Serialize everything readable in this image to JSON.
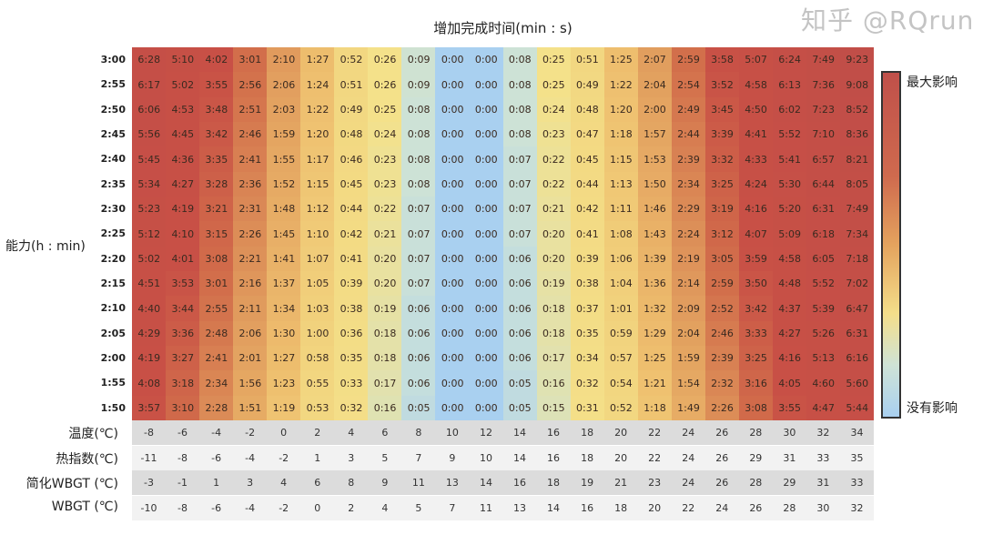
{
  "chart_data": {
    "type": "heatmap",
    "title": "增加完成时间(min : s)",
    "ylabel": "能力(h : min)",
    "rows": [
      "3:00",
      "2:55",
      "2:50",
      "2:45",
      "2:40",
      "2:35",
      "2:30",
      "2:25",
      "2:20",
      "2:15",
      "2:10",
      "2:05",
      "2:00",
      "1:55",
      "1:50"
    ],
    "values": [
      [
        "6:28",
        "5:10",
        "4:02",
        "3:01",
        "2:10",
        "1:27",
        "0:52",
        "0:26",
        "0:09",
        "0:00",
        "0:00",
        "0:08",
        "0:25",
        "0:51",
        "1:25",
        "2:07",
        "2:59",
        "3:58",
        "5:07",
        "6:24",
        "7:49",
        "9:23"
      ],
      [
        "6:17",
        "5:02",
        "3:55",
        "2:56",
        "2:06",
        "1:24",
        "0:51",
        "0:26",
        "0:09",
        "0:00",
        "0:00",
        "0:08",
        "0:25",
        "0:49",
        "1:22",
        "2:04",
        "2:54",
        "3:52",
        "4:58",
        "6:13",
        "7:36",
        "9:08"
      ],
      [
        "6:06",
        "4:53",
        "3:48",
        "2:51",
        "2:03",
        "1:22",
        "0:49",
        "0:25",
        "0:08",
        "0:00",
        "0:00",
        "0:08",
        "0:24",
        "0:48",
        "1:20",
        "2:00",
        "2:49",
        "3:45",
        "4:50",
        "6:02",
        "7:23",
        "8:52"
      ],
      [
        "5:56",
        "4:45",
        "3:42",
        "2:46",
        "1:59",
        "1:20",
        "0:48",
        "0:24",
        "0:08",
        "0:00",
        "0:00",
        "0:08",
        "0:23",
        "0:47",
        "1:18",
        "1:57",
        "2:44",
        "3:39",
        "4:41",
        "5:52",
        "7:10",
        "8:36"
      ],
      [
        "5:45",
        "4:36",
        "3:35",
        "2:41",
        "1:55",
        "1:17",
        "0:46",
        "0:23",
        "0:08",
        "0:00",
        "0:00",
        "0:07",
        "0:22",
        "0:45",
        "1:15",
        "1:53",
        "2:39",
        "3:32",
        "4:33",
        "5:41",
        "6:57",
        "8:21"
      ],
      [
        "5:34",
        "4:27",
        "3:28",
        "2:36",
        "1:52",
        "1:15",
        "0:45",
        "0:23",
        "0:08",
        "0:00",
        "0:00",
        "0:07",
        "0:22",
        "0:44",
        "1:13",
        "1:50",
        "2:34",
        "3:25",
        "4:24",
        "5:30",
        "6:44",
        "8:05"
      ],
      [
        "5:23",
        "4:19",
        "3:21",
        "2:31",
        "1:48",
        "1:12",
        "0:44",
        "0:22",
        "0:07",
        "0:00",
        "0:00",
        "0:07",
        "0:21",
        "0:42",
        "1:11",
        "1:46",
        "2:29",
        "3:19",
        "4:16",
        "5:20",
        "6:31",
        "7:49"
      ],
      [
        "5:12",
        "4:10",
        "3:15",
        "2:26",
        "1:45",
        "1:10",
        "0:42",
        "0:21",
        "0:07",
        "0:00",
        "0:00",
        "0:07",
        "0:20",
        "0:41",
        "1:08",
        "1:43",
        "2:24",
        "3:12",
        "4:07",
        "5:09",
        "6:18",
        "7:34"
      ],
      [
        "5:02",
        "4:01",
        "3:08",
        "2:21",
        "1:41",
        "1:07",
        "0:41",
        "0:20",
        "0:07",
        "0:00",
        "0:00",
        "0:06",
        "0:20",
        "0:39",
        "1:06",
        "1:39",
        "2:19",
        "3:05",
        "3:59",
        "4:58",
        "6:05",
        "7:18"
      ],
      [
        "4:51",
        "3:53",
        "3:01",
        "2:16",
        "1:37",
        "1:05",
        "0:39",
        "0:20",
        "0:07",
        "0:00",
        "0:00",
        "0:06",
        "0:19",
        "0:38",
        "1:04",
        "1:36",
        "2:14",
        "2:59",
        "3:50",
        "4:48",
        "5:52",
        "7:02"
      ],
      [
        "4:40",
        "3:44",
        "2:55",
        "2:11",
        "1:34",
        "1:03",
        "0:38",
        "0:19",
        "0:06",
        "0:00",
        "0:00",
        "0:06",
        "0:18",
        "0:37",
        "1:01",
        "1:32",
        "2:09",
        "2:52",
        "3:42",
        "4:37",
        "5:39",
        "6:47"
      ],
      [
        "4:29",
        "3:36",
        "2:48",
        "2:06",
        "1:30",
        "1:00",
        "0:36",
        "0:18",
        "0:06",
        "0:00",
        "0:00",
        "0:06",
        "0:18",
        "0:35",
        "0:59",
        "1:29",
        "2:04",
        "2:46",
        "3:33",
        "4:27",
        "5:26",
        "6:31"
      ],
      [
        "4:19",
        "3:27",
        "2:41",
        "2:01",
        "1:27",
        "0:58",
        "0:35",
        "0:18",
        "0:06",
        "0:00",
        "0:00",
        "0:06",
        "0:17",
        "0:34",
        "0:57",
        "1:25",
        "1:59",
        "2:39",
        "3:25",
        "4:16",
        "5:13",
        "6:16"
      ],
      [
        "4:08",
        "3:18",
        "2:34",
        "1:56",
        "1:23",
        "0:55",
        "0:33",
        "0:17",
        "0:06",
        "0:00",
        "0:00",
        "0:05",
        "0:16",
        "0:32",
        "0:54",
        "1:21",
        "1:54",
        "2:32",
        "3:16",
        "4:05",
        "4:60",
        "5:60"
      ],
      [
        "3:57",
        "3:10",
        "2:28",
        "1:51",
        "1:19",
        "0:53",
        "0:32",
        "0:16",
        "0:05",
        "0:00",
        "0:00",
        "0:05",
        "0:15",
        "0:31",
        "0:52",
        "1:18",
        "1:49",
        "2:26",
        "3:08",
        "3:55",
        "4:47",
        "5:44"
      ]
    ],
    "x_rows": [
      {
        "label": "温度(℃)",
        "values": [
          "-8",
          "-6",
          "-4",
          "-2",
          "0",
          "2",
          "4",
          "6",
          "8",
          "10",
          "12",
          "14",
          "16",
          "18",
          "20",
          "22",
          "24",
          "26",
          "28",
          "30",
          "32",
          "34"
        ]
      },
      {
        "label": "热指数(℃)",
        "values": [
          "-11",
          "-8",
          "-6",
          "-4",
          "-2",
          "1",
          "3",
          "5",
          "7",
          "9",
          "10",
          "14",
          "16",
          "18",
          "20",
          "22",
          "24",
          "26",
          "29",
          "31",
          "33",
          "35"
        ]
      },
      {
        "label": "简化WBGT (℃)",
        "values": [
          "-3",
          "-1",
          "1",
          "3",
          "4",
          "6",
          "8",
          "9",
          "11",
          "13",
          "14",
          "16",
          "18",
          "19",
          "21",
          "23",
          "24",
          "26",
          "28",
          "29",
          "31",
          "33"
        ]
      },
      {
        "label": "WBGT (℃)",
        "values": [
          "-10",
          "-8",
          "-6",
          "-4",
          "-2",
          "0",
          "2",
          "4",
          "5",
          "7",
          "11",
          "13",
          "14",
          "16",
          "18",
          "20",
          "22",
          "24",
          "26",
          "28",
          "30",
          "32"
        ]
      }
    ],
    "colorbar": {
      "top_label": "最大影响",
      "bottom_label": "没有影响",
      "colors": [
        "#c0504a",
        "#e4a35e",
        "#f4de8a",
        "#a9d0f0"
      ]
    }
  },
  "watermark": "知乎 @RQrun"
}
